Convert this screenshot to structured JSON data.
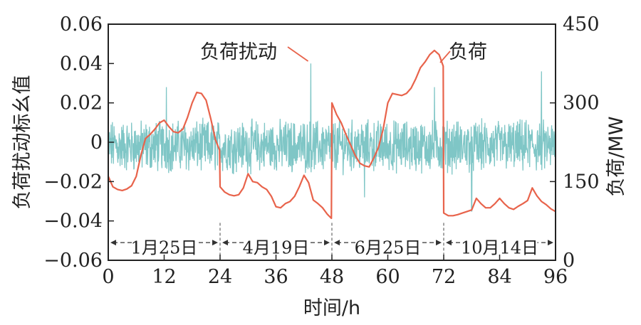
{
  "chart_data": {
    "type": "line",
    "xlabel": "时间/h",
    "ylabel_left": "负荷扰动标幺值",
    "ylabel_right": "负荷/MW",
    "xlim": [
      0,
      96
    ],
    "ylim_left": [
      -0.06,
      0.06
    ],
    "ylim_right": [
      0,
      450
    ],
    "x_ticks": [
      0,
      12,
      24,
      36,
      48,
      60,
      72,
      84,
      96
    ],
    "y_left_ticks": [
      -0.06,
      -0.04,
      -0.02,
      0,
      0.02,
      0.04,
      0.06
    ],
    "y_left_tick_labels": [
      "−0.06",
      "−0.04",
      "−0.02",
      "0",
      "0.02",
      "0.04",
      "0.06"
    ],
    "y_right_ticks": [
      0,
      150,
      300,
      450
    ],
    "grid": false,
    "colors": {
      "disturbance": "#7fc6c6",
      "load": "#e8634b",
      "axes": "#222222"
    },
    "series": [
      {
        "name": "负荷扰动",
        "axis": "left",
        "note_amplitude": "noise approx ±0.012, spikes to 0.04",
        "spikes": [
          {
            "x": 43.5,
            "y": 0.04
          },
          {
            "x": 78,
            "y": -0.035
          },
          {
            "x": 93,
            "y": 0.036
          },
          {
            "x": 12.5,
            "y": 0.028
          },
          {
            "x": 70,
            "y": 0.028
          },
          {
            "x": 55,
            "y": -0.028
          }
        ]
      },
      {
        "name": "负荷",
        "axis": "right",
        "x": [
          0,
          1,
          2,
          3,
          4,
          5,
          6,
          7,
          8,
          9,
          10,
          11,
          12,
          13,
          14,
          15,
          16,
          17,
          18,
          19,
          20,
          21,
          22,
          23,
          23.9,
          24,
          25,
          26,
          27,
          28,
          29,
          30,
          31,
          32,
          33,
          34,
          35,
          36,
          37,
          38,
          39,
          40,
          41,
          42,
          43,
          44,
          45,
          46,
          47,
          47.9,
          48,
          49,
          50,
          51,
          52,
          53,
          54,
          55,
          56,
          57,
          58,
          59,
          60,
          61,
          62,
          63,
          64,
          65,
          66,
          67,
          68,
          69,
          70,
          71,
          71.9,
          72,
          73,
          74,
          75,
          76,
          77,
          78,
          79,
          80,
          81,
          82,
          83,
          84,
          85,
          86,
          87,
          88,
          89,
          90,
          91,
          92,
          93,
          94,
          95,
          96
        ],
        "values": [
          160,
          140,
          135,
          133,
          136,
          142,
          160,
          200,
          232,
          240,
          250,
          262,
          267,
          255,
          245,
          243,
          250,
          272,
          300,
          320,
          318,
          305,
          270,
          230,
          210,
          140,
          130,
          125,
          123,
          125,
          138,
          165,
          150,
          148,
          140,
          135,
          122,
          102,
          100,
          108,
          112,
          122,
          140,
          162,
          148,
          115,
          108,
          100,
          88,
          80,
          300,
          278,
          262,
          240,
          220,
          200,
          185,
          180,
          178,
          195,
          215,
          250,
          300,
          318,
          316,
          314,
          318,
          328,
          346,
          367,
          378,
          392,
          400,
          392,
          370,
          90,
          85,
          85,
          87,
          90,
          93,
          96,
          118,
          108,
          100,
          100,
          108,
          118,
          108,
          100,
          97,
          103,
          108,
          114,
          138,
          123,
          112,
          106,
          98,
          93
        ]
      }
    ],
    "annotations": [
      {
        "text": "负荷扰动",
        "points_to": {
          "x": 43.5,
          "y": 0.04
        }
      },
      {
        "text": "负荷",
        "points_to": {
          "x": 71,
          "y": 0.04
        }
      }
    ],
    "date_segments": [
      {
        "label": "1月25日",
        "x_start": 0,
        "x_end": 24
      },
      {
        "label": "4月19日",
        "x_start": 24,
        "x_end": 48
      },
      {
        "label": "6月25日",
        "x_start": 48,
        "x_end": 72
      },
      {
        "label": "10月14日",
        "x_start": 72,
        "x_end": 96
      }
    ],
    "date_arrow_y": -0.051,
    "segment_dividers": [
      24,
      48,
      72
    ]
  }
}
